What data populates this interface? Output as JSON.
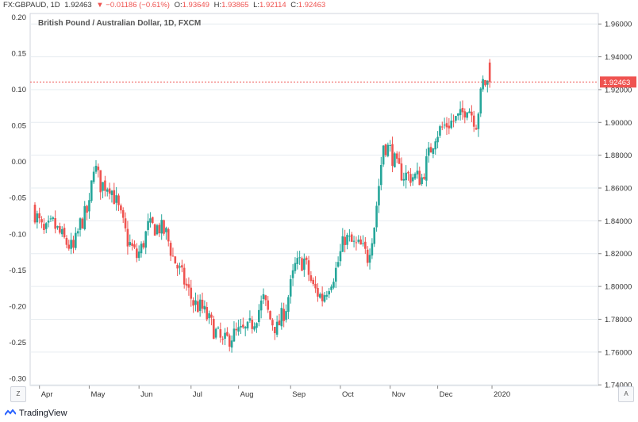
{
  "header": {
    "symbol": "FX:GBPAUD, 1D",
    "last": "1.92463",
    "arrow": "▼",
    "change": "−0.01186 (−0.61%)",
    "o_label": "O:",
    "o_val": "1.93649",
    "h_label": "H:",
    "h_val": "1.93865",
    "l_label": "L:",
    "l_val": "1.92114",
    "c_label": "C:",
    "c_val": "1.92463"
  },
  "zoom_left": "Z",
  "zoom_right": "A",
  "brand": "TradingView",
  "colors": {
    "up": "#26a69a",
    "down": "#ef5350",
    "grid": "#e6ecf0",
    "axis": "#333333"
  },
  "chart_data": {
    "type": "candlestick",
    "title": "British Pound / Australian Dollar, 1D, FXCM",
    "left_axis": {
      "ticks": [
        "0.20",
        "0.15",
        "0.10",
        "0.05",
        "0.00",
        "-0.05",
        "-0.10",
        "-0.15",
        "-0.20",
        "-0.25",
        "-0.30"
      ],
      "range": [
        -0.31,
        0.205
      ]
    },
    "right_axis": {
      "ticks": [
        "1.96000",
        "1.94000",
        "1.92000",
        "1.90000",
        "1.88000",
        "1.86000",
        "1.84000",
        "1.82000",
        "1.80000",
        "1.78000",
        "1.76000",
        "1.74000"
      ],
      "range": [
        1.7396,
        1.9664
      ]
    },
    "last_price": 1.92463,
    "last_price_label": "1.92463",
    "x_labels": [
      "Apr",
      "May",
      "Jun",
      "Jul",
      "Aug",
      "Sep",
      "Oct",
      "Nov",
      "Dec",
      "2020"
    ],
    "close_anchors": [
      [
        0,
        1.845
      ],
      [
        4,
        1.832
      ],
      [
        8,
        1.838
      ],
      [
        13,
        1.828
      ],
      [
        17,
        1.822
      ],
      [
        20,
        1.838
      ],
      [
        24,
        1.848
      ],
      [
        26,
        1.875
      ],
      [
        29,
        1.862
      ],
      [
        33,
        1.862
      ],
      [
        36,
        1.851
      ],
      [
        41,
        1.828
      ],
      [
        45,
        1.818
      ],
      [
        47,
        1.823
      ],
      [
        50,
        1.836
      ],
      [
        55,
        1.836
      ],
      [
        58,
        1.832
      ],
      [
        61,
        1.818
      ],
      [
        66,
        1.803
      ],
      [
        70,
        1.79
      ],
      [
        74,
        1.786
      ],
      [
        79,
        1.774
      ],
      [
        83,
        1.765
      ],
      [
        87,
        1.77
      ],
      [
        91,
        1.772
      ],
      [
        94,
        1.773
      ],
      [
        97,
        1.78
      ],
      [
        101,
        1.792
      ],
      [
        104,
        1.78
      ],
      [
        107,
        1.774
      ],
      [
        111,
        1.788
      ],
      [
        115,
        1.812
      ],
      [
        119,
        1.816
      ],
      [
        123,
        1.799
      ],
      [
        127,
        1.793
      ],
      [
        130,
        1.802
      ],
      [
        133,
        1.81
      ],
      [
        137,
        1.83
      ],
      [
        141,
        1.825
      ],
      [
        144,
        1.824
      ],
      [
        147,
        1.818
      ],
      [
        150,
        1.838
      ],
      [
        152,
        1.862
      ],
      [
        154,
        1.887
      ],
      [
        157,
        1.883
      ],
      [
        160,
        1.872
      ],
      [
        163,
        1.868
      ],
      [
        167,
        1.867
      ],
      [
        171,
        1.866
      ],
      [
        174,
        1.88
      ],
      [
        177,
        1.893
      ],
      [
        181,
        1.898
      ],
      [
        185,
        1.901
      ],
      [
        188,
        1.903
      ],
      [
        191,
        1.911
      ],
      [
        195,
        1.9
      ],
      [
        198,
        1.924
      ],
      [
        201,
        1.924
      ]
    ]
  }
}
